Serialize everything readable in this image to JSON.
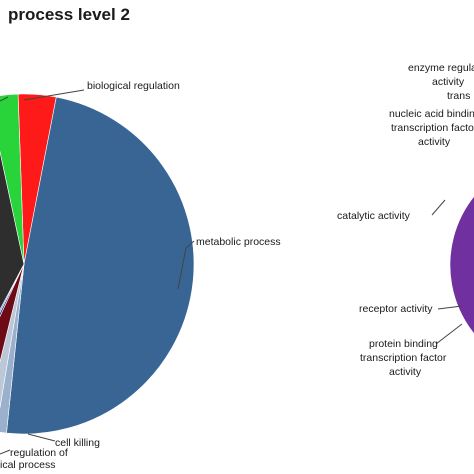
{
  "chart_data": [
    {
      "type": "pie",
      "title": "process level 2",
      "slices": [
        {
          "label": "biological regulation",
          "value": 3.6,
          "color": "#ff1a1a"
        },
        {
          "label": "metabolic process",
          "value": 48.6,
          "color": "#386594"
        },
        {
          "label": "cell killing",
          "value": 1.0,
          "color": "#9ab0cc"
        },
        {
          "label": "regulation of biological process",
          "value": 1.2,
          "color": "#bcc8d8"
        },
        {
          "label": "",
          "value": 3.0,
          "color": "#6d0a16"
        },
        {
          "label": "",
          "value": 0.5,
          "color": "#3b2a8c"
        },
        {
          "label": "",
          "value": 0.4,
          "color": "#5a93d6"
        },
        {
          "label": "",
          "value": 38.9,
          "color": "#2e2e2e"
        },
        {
          "label": "",
          "value": 2.8,
          "color": "#28d43a"
        }
      ],
      "visible_labels": {
        "biological_regulation": "biological regulation",
        "metabolic_process": "metabolic process",
        "cell_killing": "cell killing",
        "regulation_line1": "regulation of",
        "regulation_line2": "ical process"
      }
    },
    {
      "type": "pie",
      "title": "",
      "slices": [
        {
          "label": "catalytic activity",
          "value": 44,
          "color": "#7030a0"
        },
        {
          "label": "receptor activity",
          "value": 2,
          "color": "#ff3bb0"
        },
        {
          "label": "protein binding transcription factor activity",
          "value": 1.5,
          "color": "#33bfe8"
        },
        {
          "label": "enzyme regulator activity",
          "value": 1,
          "color": "#7030a0"
        },
        {
          "label": "transporter activity",
          "value": 1,
          "color": "#7030a0"
        },
        {
          "label": "nucleic acid binding transcription factor activity",
          "value": 1,
          "color": "#7030a0"
        }
      ],
      "visible_labels": {
        "enzyme_line1": "enzyme regula",
        "enzyme_line2": "activity",
        "transporter": "trans",
        "nucleic_line1": "nucleic acid bindin",
        "nucleic_line2": "transcription facto",
        "nucleic_line3": "activity",
        "catalytic": "catalytic activity",
        "receptor": "receptor activity",
        "protein_line1": "protein binding",
        "protein_line2": "transcription factor",
        "protein_line3": "activity"
      }
    }
  ]
}
